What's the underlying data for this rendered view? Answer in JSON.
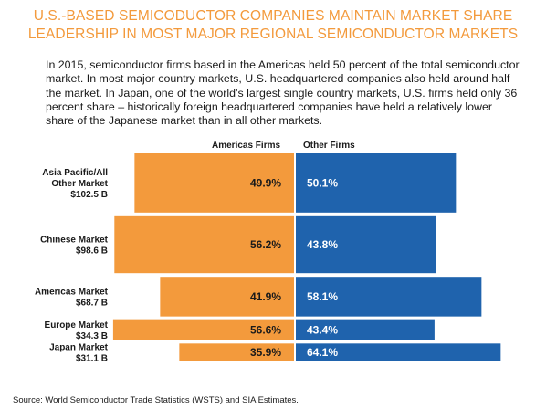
{
  "title_line1": "U.S.-BASED SEMICODUCTOR COMPANIES MAINTAIN MARKET SHARE",
  "title_line2": "LEADERSHIP IN MOST MAJOR REGIONAL SEMICONDUCTOR MARKETS",
  "body": "In 2015, semiconductor firms based in the Americas held 50 percent of the total semiconductor market.  In most major country markets, U.S. headquartered companies also held around half the market.  In Japan, one of the world’s largest single country markets, U.S. firms held only 36 percent share – historically foreign headquartered companies have held a relatively lower share of the Japanese market than in all other markets.",
  "source": "Source: World Semiconductor Trade Statistics (WSTS) and SIA Estimates.",
  "chart_data": {
    "type": "bar",
    "orientation": "horizontal-stacked-mekko",
    "categories": [
      {
        "line1": "Asia Pacific/All",
        "line2": "Other Market",
        "line3": "$102.5 B",
        "market_size": 102.5
      },
      {
        "line1": "Chinese Market",
        "line2": "$98.6 B",
        "line3": "",
        "market_size": 98.6
      },
      {
        "line1": "Americas Market",
        "line2": "$68.7 B",
        "line3": "",
        "market_size": 68.7
      },
      {
        "line1": "Europe Market",
        "line2": "$34.3 B",
        "line3": "",
        "market_size": 34.3
      },
      {
        "line1": "Japan Market",
        "line2": "$31.1 B",
        "line3": "",
        "market_size": 31.1
      }
    ],
    "series": [
      {
        "name": "Americas Firms",
        "color": "#f39a3c",
        "values": [
          49.9,
          56.2,
          41.9,
          56.6,
          35.9
        ],
        "labels": [
          "49.9%",
          "56.2%",
          "41.9%",
          "56.6%",
          "35.9%"
        ]
      },
      {
        "name": "Other Firms",
        "color": "#1f63ad",
        "values": [
          50.1,
          43.8,
          58.1,
          43.4,
          64.1
        ],
        "labels": [
          "50.1%",
          "43.8%",
          "58.1%",
          "43.4%",
          "64.1%"
        ]
      }
    ],
    "legend_position": "top"
  }
}
